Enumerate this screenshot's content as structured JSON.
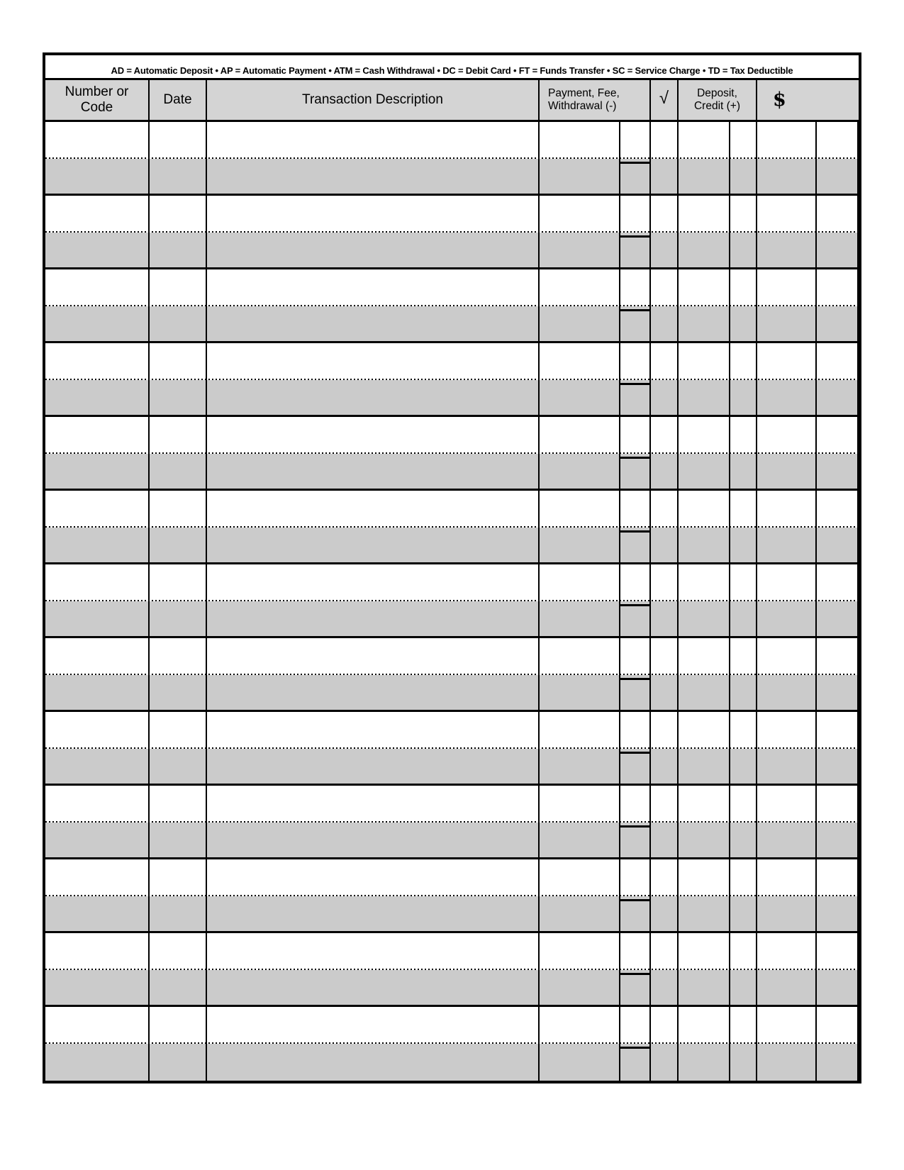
{
  "legend": {
    "text": "AD = Automatic Deposit •  AP = Automatic Payment •  ATM = Cash Withdrawal • DC = Debit Card • FT = Funds Transfer • SC = Service Charge • TD = Tax Deductible"
  },
  "header": {
    "number_code": "Number or\nCode",
    "date": "Date",
    "description": "Transaction Description",
    "payment": "Payment, Fee,\nWithdrawal (-)",
    "check": "√",
    "deposit": "Deposit,\nCredit (+)",
    "balance": "$"
  },
  "body": {
    "row_count": 13
  },
  "colors": {
    "line": "#000000",
    "header_bg": "#d4d4d4",
    "stripe_gray": "#cbcbcb",
    "page_bg": "#ffffff"
  }
}
